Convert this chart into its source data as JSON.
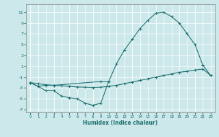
{
  "xlabel": "Humidex (Indice chaleur)",
  "background_color": "#cce8ea",
  "grid_color": "#ffffff",
  "line_color": "#1e7070",
  "xlim": [
    -0.5,
    23.5
  ],
  "ylim": [
    -7.5,
    12.5
  ],
  "yticks": [
    -7,
    -5,
    -3,
    -1,
    1,
    3,
    5,
    7,
    9,
    11
  ],
  "xticks": [
    0,
    1,
    2,
    3,
    4,
    5,
    6,
    7,
    8,
    9,
    10,
    11,
    12,
    13,
    14,
    15,
    16,
    17,
    18,
    19,
    20,
    21,
    22,
    23
  ],
  "upper_x": [
    0,
    1,
    2,
    3,
    9,
    10,
    11,
    12,
    13,
    14,
    15,
    16,
    17,
    18,
    19,
    20,
    21,
    22,
    23
  ],
  "upper_y": [
    -2.0,
    -2.7,
    -2.5,
    -2.5,
    -1.8,
    -1.8,
    1.5,
    4.0,
    6.0,
    8.0,
    9.5,
    10.8,
    11.0,
    10.2,
    9.0,
    7.0,
    5.0,
    1.2,
    -0.7
  ],
  "mid_x": [
    0,
    1,
    2,
    3,
    4,
    5,
    6,
    7,
    8,
    9,
    10,
    11,
    12,
    13,
    14,
    15,
    16,
    17,
    18,
    19,
    20,
    21,
    22,
    23
  ],
  "mid_y": [
    -2.0,
    -2.2,
    -2.4,
    -2.5,
    -2.6,
    -2.7,
    -2.8,
    -2.85,
    -2.9,
    -2.85,
    -2.7,
    -2.5,
    -2.2,
    -1.9,
    -1.6,
    -1.3,
    -1.0,
    -0.7,
    -0.4,
    -0.1,
    0.1,
    0.3,
    0.5,
    -0.7
  ],
  "lower_x": [
    0,
    1,
    2,
    3,
    4,
    5,
    6,
    7,
    8,
    9,
    10
  ],
  "lower_y": [
    -2.0,
    -2.7,
    -3.5,
    -3.5,
    -4.5,
    -4.8,
    -5.0,
    -5.8,
    -6.2,
    -5.8,
    -1.8
  ]
}
